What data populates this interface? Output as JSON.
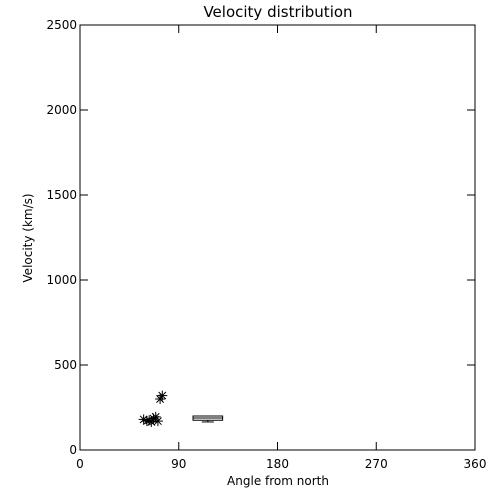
{
  "chart_data": {
    "type": "scatter",
    "title": "Velocity distribution",
    "xlabel": "Angle from north",
    "ylabel": "Velocity (km/s)",
    "xlim": [
      0,
      360
    ],
    "ylim": [
      0,
      2500
    ],
    "xticks": [
      0,
      90,
      180,
      270,
      360
    ],
    "yticks": [
      0,
      500,
      1000,
      1500,
      2000,
      2500
    ],
    "grid": false,
    "legend": "none",
    "colors": {
      "axes": "#000000",
      "marker": "#000000",
      "background": "#ffffff"
    },
    "series": [
      {
        "marker": "asterisk",
        "x": [
          58,
          61,
          63,
          65,
          67,
          69,
          71,
          73,
          75
        ],
        "y": [
          180,
          170,
          175,
          165,
          185,
          195,
          170,
          300,
          320
        ]
      }
    ],
    "box": {
      "x_min": 103,
      "x_max": 130,
      "y_min": 175,
      "y_max": 200,
      "median": 188,
      "whisker_low": 165,
      "whisker_high": 200
    }
  }
}
